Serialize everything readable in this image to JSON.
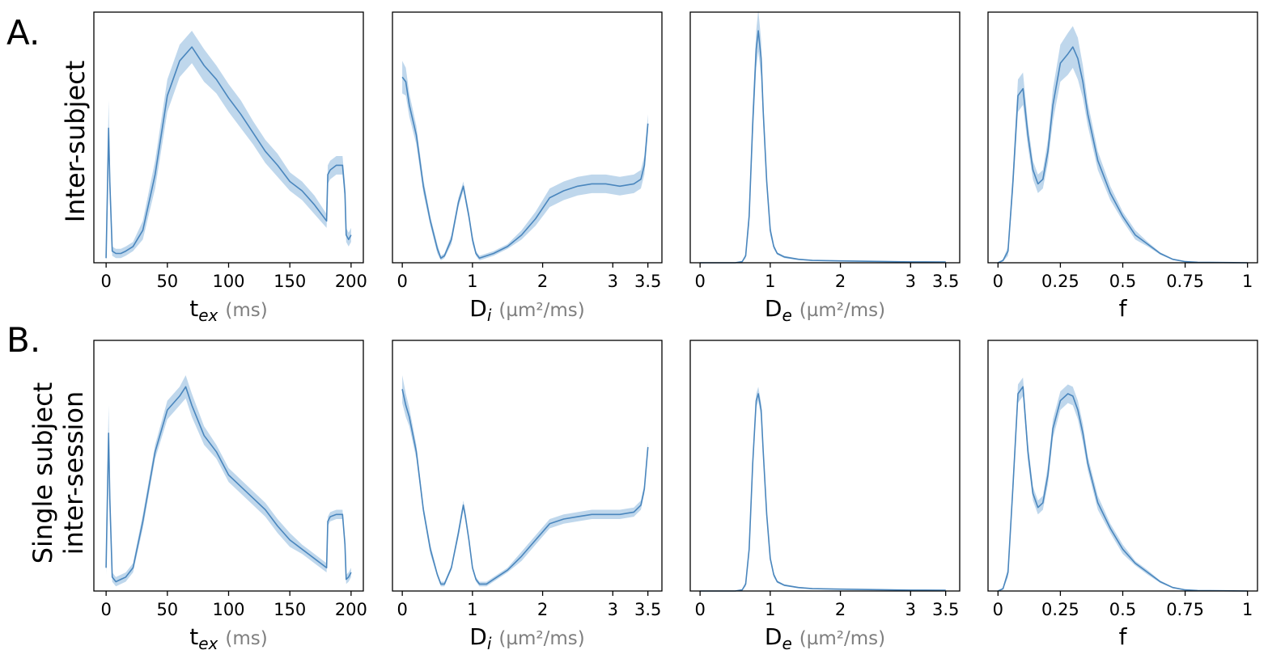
{
  "figure": {
    "panel_labels": [
      "A.",
      "B."
    ],
    "row_labels": [
      [
        "Inter-subject"
      ],
      [
        "Single subject",
        "inter-session"
      ]
    ]
  },
  "colors": {
    "line": "#4a86bd",
    "band": "#a9c9e6",
    "axis": "#000000",
    "unit": "#7f7f7f"
  },
  "chart_data": [
    {
      "type": "area",
      "row": 0,
      "col": 0,
      "x_label": {
        "symbol": "t",
        "sub": "ex",
        "unit": "(ms)"
      },
      "xlim": [
        -10,
        210
      ],
      "xticks": [
        {
          "v": 0,
          "t": "0"
        },
        {
          "v": 50,
          "t": "50"
        },
        {
          "v": 100,
          "t": "100"
        },
        {
          "v": 150,
          "t": "150"
        },
        {
          "v": 200,
          "t": "200"
        }
      ],
      "ylim": [
        0,
        1.08
      ],
      "x": [
        0,
        1,
        2,
        3,
        5,
        8,
        12,
        16,
        22,
        30,
        40,
        50,
        60,
        70,
        80,
        90,
        100,
        110,
        120,
        130,
        140,
        150,
        160,
        170,
        180,
        181,
        183,
        188,
        193,
        195,
        196,
        198,
        200
      ],
      "mean": [
        0.02,
        0.3,
        0.58,
        0.35,
        0.05,
        0.04,
        0.04,
        0.05,
        0.07,
        0.14,
        0.38,
        0.72,
        0.87,
        0.93,
        0.85,
        0.79,
        0.71,
        0.64,
        0.56,
        0.48,
        0.42,
        0.35,
        0.31,
        0.25,
        0.18,
        0.38,
        0.4,
        0.42,
        0.42,
        0.3,
        0.12,
        0.1,
        0.12
      ],
      "band": [
        0.02,
        0.08,
        0.12,
        0.08,
        0.02,
        0.02,
        0.02,
        0.02,
        0.02,
        0.04,
        0.06,
        0.07,
        0.07,
        0.07,
        0.07,
        0.06,
        0.06,
        0.06,
        0.05,
        0.05,
        0.05,
        0.04,
        0.04,
        0.04,
        0.03,
        0.04,
        0.04,
        0.04,
        0.04,
        0.04,
        0.03,
        0.03,
        0.03
      ]
    },
    {
      "type": "area",
      "row": 0,
      "col": 1,
      "x_label": {
        "symbol": "D",
        "sub": "i",
        "unit": "(µm²/ms)"
      },
      "xlim": [
        -0.14,
        3.7
      ],
      "xticks": [
        {
          "v": 0,
          "t": "0"
        },
        {
          "v": 1,
          "t": "1"
        },
        {
          "v": 2,
          "t": "2"
        },
        {
          "v": 3,
          "t": "3"
        },
        {
          "v": 3.5,
          "t": "3.5"
        }
      ],
      "ylim": [
        0,
        1.08
      ],
      "x": [
        0,
        0.05,
        0.1,
        0.2,
        0.3,
        0.4,
        0.5,
        0.55,
        0.6,
        0.7,
        0.8,
        0.87,
        0.9,
        0.95,
        1.0,
        1.05,
        1.1,
        1.2,
        1.3,
        1.5,
        1.7,
        1.9,
        2.1,
        2.3,
        2.5,
        2.7,
        2.9,
        3.1,
        3.3,
        3.4,
        3.45,
        3.5
      ],
      "mean": [
        0.8,
        0.78,
        0.68,
        0.55,
        0.33,
        0.18,
        0.06,
        0.02,
        0.03,
        0.1,
        0.26,
        0.33,
        0.28,
        0.2,
        0.1,
        0.04,
        0.02,
        0.03,
        0.04,
        0.07,
        0.12,
        0.19,
        0.28,
        0.31,
        0.33,
        0.34,
        0.34,
        0.33,
        0.34,
        0.36,
        0.42,
        0.6
      ],
      "band": [
        0.07,
        0.06,
        0.05,
        0.04,
        0.03,
        0.02,
        0.02,
        0.01,
        0.01,
        0.02,
        0.02,
        0.02,
        0.02,
        0.02,
        0.02,
        0.01,
        0.01,
        0.01,
        0.01,
        0.01,
        0.02,
        0.03,
        0.04,
        0.04,
        0.04,
        0.04,
        0.04,
        0.04,
        0.04,
        0.04,
        0.04,
        0.04
      ]
    },
    {
      "type": "area",
      "row": 0,
      "col": 2,
      "x_label": {
        "symbol": "D",
        "sub": "e",
        "unit": "(µm²/ms)"
      },
      "xlim": [
        -0.14,
        3.7
      ],
      "xticks": [
        {
          "v": 0,
          "t": "0"
        },
        {
          "v": 1,
          "t": "1"
        },
        {
          "v": 2,
          "t": "2"
        },
        {
          "v": 3,
          "t": "3"
        },
        {
          "v": 3.5,
          "t": "3.5"
        }
      ],
      "ylim": [
        0,
        1.08
      ],
      "x": [
        0,
        0.5,
        0.6,
        0.65,
        0.7,
        0.75,
        0.8,
        0.83,
        0.87,
        0.9,
        0.95,
        1.0,
        1.05,
        1.1,
        1.2,
        1.4,
        1.6,
        2.0,
        2.5,
        3.0,
        3.5
      ],
      "mean": [
        0.0,
        0.0,
        0.005,
        0.03,
        0.2,
        0.6,
        0.92,
        1.0,
        0.88,
        0.65,
        0.35,
        0.14,
        0.07,
        0.04,
        0.025,
        0.015,
        0.01,
        0.008,
        0.006,
        0.004,
        0.003
      ],
      "band": [
        0.0,
        0.0,
        0.002,
        0.01,
        0.04,
        0.07,
        0.08,
        0.09,
        0.08,
        0.05,
        0.03,
        0.02,
        0.01,
        0.005,
        0.005,
        0.003,
        0.002,
        0.002,
        0.002,
        0.002,
        0.002
      ]
    },
    {
      "type": "area",
      "row": 0,
      "col": 3,
      "x_label": {
        "symbol": "f",
        "sub": "",
        "unit": ""
      },
      "xlim": [
        -0.04,
        1.04
      ],
      "xticks": [
        {
          "v": 0,
          "t": "0"
        },
        {
          "v": 0.25,
          "t": "0.25"
        },
        {
          "v": 0.5,
          "t": "0.5"
        },
        {
          "v": 0.75,
          "t": "0.75"
        },
        {
          "v": 1,
          "t": "1"
        }
      ],
      "ylim": [
        0,
        1.08
      ],
      "x": [
        0,
        0.02,
        0.04,
        0.06,
        0.08,
        0.1,
        0.12,
        0.14,
        0.16,
        0.18,
        0.2,
        0.22,
        0.25,
        0.28,
        0.3,
        0.32,
        0.34,
        0.36,
        0.4,
        0.45,
        0.5,
        0.55,
        0.6,
        0.65,
        0.7,
        0.75,
        0.8,
        0.9,
        1.0
      ],
      "mean": [
        0.0,
        0.01,
        0.05,
        0.35,
        0.72,
        0.75,
        0.55,
        0.4,
        0.34,
        0.36,
        0.48,
        0.68,
        0.86,
        0.9,
        0.93,
        0.88,
        0.78,
        0.64,
        0.44,
        0.3,
        0.2,
        0.12,
        0.08,
        0.04,
        0.015,
        0.005,
        0.002,
        0.001,
        0.0
      ],
      "band": [
        0.0,
        0.005,
        0.02,
        0.05,
        0.07,
        0.07,
        0.05,
        0.04,
        0.04,
        0.04,
        0.05,
        0.07,
        0.08,
        0.09,
        0.09,
        0.09,
        0.07,
        0.05,
        0.04,
        0.03,
        0.02,
        0.02,
        0.01,
        0.005,
        0.003,
        0.002,
        0.001,
        0.001,
        0.0
      ]
    },
    {
      "type": "area",
      "row": 1,
      "col": 0,
      "x_label": {
        "symbol": "t",
        "sub": "ex",
        "unit": "(ms)"
      },
      "xlim": [
        -10,
        210
      ],
      "xticks": [
        {
          "v": 0,
          "t": "0"
        },
        {
          "v": 50,
          "t": "50"
        },
        {
          "v": 100,
          "t": "100"
        },
        {
          "v": 150,
          "t": "150"
        },
        {
          "v": 200,
          "t": "200"
        }
      ],
      "ylim": [
        0,
        1.08
      ],
      "x": [
        0,
        1,
        2,
        3,
        5,
        8,
        12,
        16,
        22,
        30,
        40,
        50,
        60,
        65,
        70,
        80,
        90,
        100,
        110,
        120,
        130,
        140,
        150,
        160,
        170,
        180,
        181,
        183,
        188,
        193,
        195,
        196,
        198,
        200
      ],
      "mean": [
        0.1,
        0.4,
        0.68,
        0.4,
        0.06,
        0.04,
        0.05,
        0.06,
        0.1,
        0.3,
        0.6,
        0.78,
        0.84,
        0.88,
        0.8,
        0.67,
        0.6,
        0.5,
        0.45,
        0.4,
        0.35,
        0.28,
        0.22,
        0.18,
        0.14,
        0.1,
        0.3,
        0.32,
        0.33,
        0.33,
        0.2,
        0.05,
        0.06,
        0.08
      ],
      "band": [
        0.03,
        0.1,
        0.12,
        0.08,
        0.02,
        0.02,
        0.02,
        0.02,
        0.02,
        0.03,
        0.03,
        0.04,
        0.04,
        0.05,
        0.05,
        0.04,
        0.03,
        0.03,
        0.03,
        0.03,
        0.03,
        0.03,
        0.03,
        0.02,
        0.02,
        0.02,
        0.02,
        0.02,
        0.02,
        0.02,
        0.02,
        0.02,
        0.02,
        0.02
      ]
    },
    {
      "type": "area",
      "row": 1,
      "col": 1,
      "x_label": {
        "symbol": "D",
        "sub": "i",
        "unit": "(µm²/ms)"
      },
      "xlim": [
        -0.14,
        3.7
      ],
      "xticks": [
        {
          "v": 0,
          "t": "0"
        },
        {
          "v": 1,
          "t": "1"
        },
        {
          "v": 2,
          "t": "2"
        },
        {
          "v": 3,
          "t": "3"
        },
        {
          "v": 3.5,
          "t": "3.5"
        }
      ],
      "ylim": [
        0,
        1.08
      ],
      "x": [
        0,
        0.05,
        0.1,
        0.2,
        0.3,
        0.4,
        0.5,
        0.55,
        0.6,
        0.7,
        0.8,
        0.87,
        0.9,
        0.95,
        1.0,
        1.05,
        1.1,
        1.2,
        1.3,
        1.5,
        1.7,
        1.9,
        2.1,
        2.3,
        2.5,
        2.7,
        2.9,
        3.1,
        3.3,
        3.4,
        3.45,
        3.5
      ],
      "mean": [
        0.87,
        0.8,
        0.75,
        0.6,
        0.35,
        0.18,
        0.07,
        0.03,
        0.03,
        0.1,
        0.25,
        0.37,
        0.32,
        0.22,
        0.1,
        0.05,
        0.03,
        0.03,
        0.05,
        0.09,
        0.15,
        0.22,
        0.29,
        0.31,
        0.32,
        0.33,
        0.33,
        0.33,
        0.34,
        0.37,
        0.44,
        0.62
      ],
      "band": [
        0.06,
        0.05,
        0.04,
        0.03,
        0.02,
        0.02,
        0.01,
        0.01,
        0.01,
        0.01,
        0.02,
        0.02,
        0.02,
        0.01,
        0.01,
        0.01,
        0.01,
        0.01,
        0.01,
        0.01,
        0.02,
        0.02,
        0.02,
        0.02,
        0.02,
        0.02,
        0.02,
        0.02,
        0.02,
        0.02,
        0.02,
        0.02
      ]
    },
    {
      "type": "area",
      "row": 1,
      "col": 2,
      "x_label": {
        "symbol": "D",
        "sub": "e",
        "unit": "(µm²/ms)"
      },
      "xlim": [
        -0.14,
        3.7
      ],
      "xticks": [
        {
          "v": 0,
          "t": "0"
        },
        {
          "v": 1,
          "t": "1"
        },
        {
          "v": 2,
          "t": "2"
        },
        {
          "v": 3,
          "t": "3"
        },
        {
          "v": 3.5,
          "t": "3.5"
        }
      ],
      "ylim": [
        0,
        1.08
      ],
      "x": [
        0,
        0.5,
        0.6,
        0.65,
        0.7,
        0.75,
        0.8,
        0.83,
        0.87,
        0.9,
        0.95,
        1.0,
        1.05,
        1.1,
        1.2,
        1.4,
        1.6,
        2.0,
        2.5,
        3.0,
        3.5
      ],
      "mean": [
        0.0,
        0.0,
        0.005,
        0.03,
        0.18,
        0.55,
        0.82,
        0.85,
        0.78,
        0.6,
        0.33,
        0.14,
        0.07,
        0.04,
        0.025,
        0.015,
        0.01,
        0.008,
        0.006,
        0.004,
        0.003
      ],
      "band": [
        0.0,
        0.0,
        0.002,
        0.01,
        0.02,
        0.03,
        0.03,
        0.03,
        0.03,
        0.02,
        0.02,
        0.01,
        0.01,
        0.005,
        0.004,
        0.003,
        0.002,
        0.002,
        0.002,
        0.002,
        0.002
      ]
    },
    {
      "type": "area",
      "row": 1,
      "col": 3,
      "x_label": {
        "symbol": "f",
        "sub": "",
        "unit": ""
      },
      "xlim": [
        -0.04,
        1.04
      ],
      "xticks": [
        {
          "v": 0,
          "t": "0"
        },
        {
          "v": 0.25,
          "t": "0.25"
        },
        {
          "v": 0.5,
          "t": "0.5"
        },
        {
          "v": 0.75,
          "t": "0.75"
        },
        {
          "v": 1,
          "t": "1"
        }
      ],
      "ylim": [
        0,
        1.08
      ],
      "x": [
        0,
        0.02,
        0.04,
        0.06,
        0.08,
        0.1,
        0.12,
        0.14,
        0.16,
        0.18,
        0.2,
        0.22,
        0.25,
        0.28,
        0.3,
        0.32,
        0.34,
        0.36,
        0.4,
        0.45,
        0.5,
        0.55,
        0.6,
        0.65,
        0.7,
        0.75,
        0.8,
        0.9,
        1.0
      ],
      "mean": [
        0.0,
        0.01,
        0.08,
        0.45,
        0.85,
        0.88,
        0.6,
        0.42,
        0.36,
        0.38,
        0.5,
        0.7,
        0.82,
        0.85,
        0.84,
        0.78,
        0.68,
        0.55,
        0.38,
        0.27,
        0.18,
        0.12,
        0.08,
        0.04,
        0.015,
        0.005,
        0.002,
        0.001,
        0.0
      ],
      "band": [
        0.0,
        0.005,
        0.02,
        0.04,
        0.04,
        0.04,
        0.04,
        0.03,
        0.03,
        0.03,
        0.04,
        0.04,
        0.04,
        0.04,
        0.04,
        0.04,
        0.04,
        0.03,
        0.03,
        0.02,
        0.02,
        0.01,
        0.01,
        0.005,
        0.003,
        0.002,
        0.001,
        0.001,
        0.0
      ]
    }
  ]
}
